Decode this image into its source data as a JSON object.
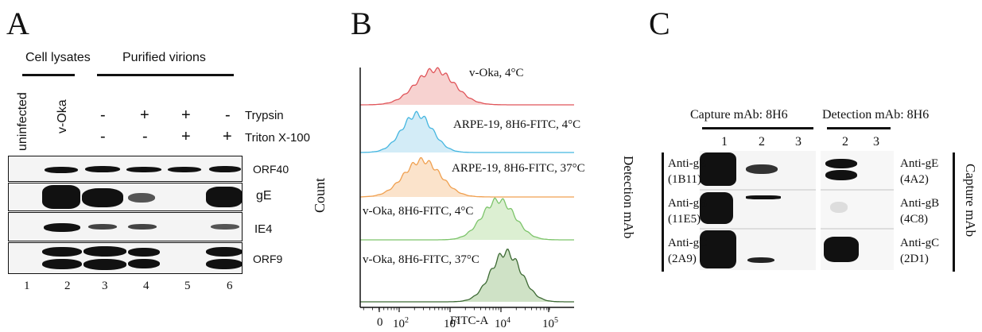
{
  "panel_a": {
    "letter": "A",
    "group_cell_lysates": "Cell lysates",
    "group_purified_virions": "Purified virions",
    "lane_uninfected": "uninfected",
    "lane_voka": "v-Oka",
    "treatment_trypsin": "Trypsin",
    "treatment_triton": "Triton X-100",
    "trypsin_signs": [
      "-",
      "+",
      "+",
      "-"
    ],
    "triton_signs": [
      "-",
      "-",
      "+",
      "+"
    ],
    "blots": [
      "ORF40",
      "gE",
      "IE4",
      "ORF9"
    ],
    "lane_numbers": [
      "1",
      "2",
      "3",
      "4",
      "5",
      "6"
    ]
  },
  "panel_b": {
    "letter": "B",
    "y_label": "Count",
    "x_label": "FITC-A",
    "x_ticks": [
      {
        "base": "0",
        "exp": ""
      },
      {
        "base": "10",
        "exp": "2"
      },
      {
        "base": "10",
        "exp": "3"
      },
      {
        "base": "10",
        "exp": "4"
      },
      {
        "base": "10",
        "exp": "5"
      }
    ],
    "histograms": [
      {
        "label": "v-Oka, 4°C",
        "color": "#e0555a",
        "fill": "#f7d2d0"
      },
      {
        "label": "ARPE-19, 8H6-FITC, 4°C",
        "color": "#45b6e0",
        "fill": "#d3ecf7"
      },
      {
        "label": "ARPE-19, 8H6-FITC, 37°C",
        "color": "#f0a050",
        "fill": "#fbe3cb"
      },
      {
        "label": "v-Oka, 8H6-FITC, 4°C",
        "color": "#7cc46a",
        "fill": "#dcefd2"
      },
      {
        "label": "v-Oka, 8H6-FITC, 37°C",
        "color": "#3d6a34",
        "fill": "#cfe2c6"
      }
    ]
  },
  "panel_c": {
    "letter": "C",
    "capture_header": "Capture mAb: 8H6",
    "detection_header": "Detection mAb: 8H6",
    "left_lane_numbers": [
      "1",
      "2",
      "3"
    ],
    "right_lane_numbers": [
      "2",
      "3"
    ],
    "left_side_label": "Detection mAb",
    "right_side_label": "Capture mAb",
    "rows": [
      {
        "left_name": "Anti-gE",
        "left_clone": "(1B11)",
        "right_name": "Anti-gE",
        "right_clone": "(4A2)"
      },
      {
        "left_name": "Anti-gB",
        "left_clone": "(11E5)",
        "right_name": "Anti-gB",
        "right_clone": "(4C8)"
      },
      {
        "left_name": "Anti-gC",
        "left_clone": "(2A9)",
        "right_name": "Anti-gC",
        "right_clone": "(2D1)"
      }
    ]
  }
}
